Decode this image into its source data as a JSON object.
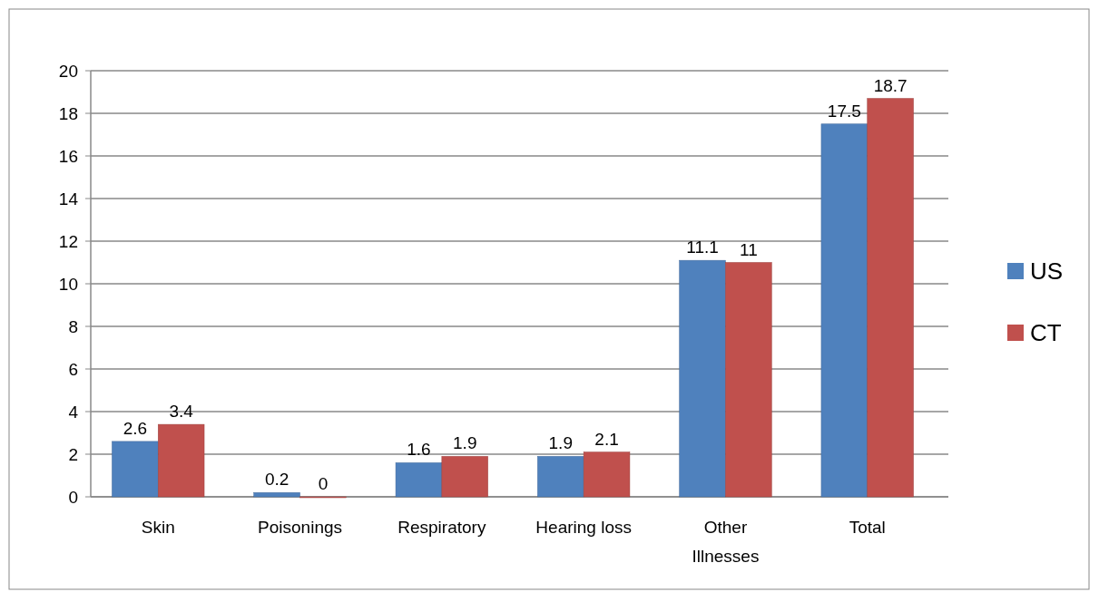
{
  "chart_data": {
    "type": "bar",
    "categories": [
      "Skin",
      "Poisonings",
      "Respiratory",
      "Hearing loss",
      "Other Illnesses",
      "Total"
    ],
    "series": [
      {
        "name": "US",
        "color": "#4f81bd",
        "values": [
          2.6,
          0.2,
          1.6,
          1.9,
          11.1,
          17.5
        ]
      },
      {
        "name": "CT",
        "color": "#c0504d",
        "values": [
          3.4,
          0,
          1.9,
          2.1,
          11,
          18.7
        ]
      }
    ],
    "ylim": [
      0,
      20
    ],
    "yticks": [
      0,
      2,
      4,
      6,
      8,
      10,
      12,
      14,
      16,
      18,
      20
    ],
    "grid": "y",
    "legend": "right",
    "data_labels": true
  }
}
